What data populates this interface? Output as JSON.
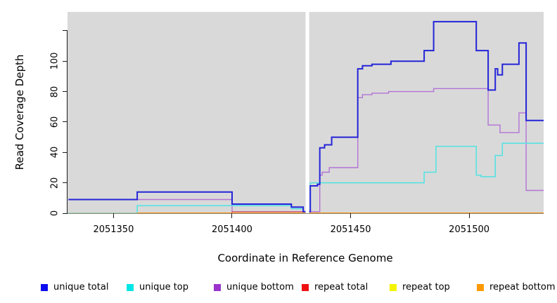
{
  "chart_data": {
    "type": "line",
    "subtype": "step-after",
    "title": "",
    "xlabel": "Coordinate in Reference Genome",
    "ylabel": "Read Coverage Depth",
    "xlim": [
      2051330.6,
      2051531.4
    ],
    "ylim": [
      0,
      132.4
    ],
    "panel_bg": "#d9d9d9",
    "grid": "off",
    "legend_position": "bottom",
    "xticks": [
      {
        "value": 2051350,
        "label": "2051350"
      },
      {
        "value": 2051400,
        "label": "2051400"
      },
      {
        "value": 2051450,
        "label": "2051450"
      },
      {
        "value": 2051500,
        "label": "2051500"
      }
    ],
    "yticks": [
      {
        "value": 0,
        "label": "0"
      },
      {
        "value": 20,
        "label": "20"
      },
      {
        "value": 40,
        "label": "40"
      },
      {
        "value": 60,
        "label": "60"
      },
      {
        "value": 80,
        "label": "80"
      },
      {
        "value": 100,
        "label": "100"
      },
      {
        "value": 120,
        "label": ""
      }
    ],
    "gap": {
      "x_start": 2051431.0,
      "x_end": 2051432.5,
      "color": "#ffffff"
    },
    "series": [
      {
        "key": "unique_bottom",
        "name": "unique bottom",
        "line_color": "#b273d6",
        "line_width": 1.4,
        "points": [
          [
            2051331,
            9
          ],
          [
            2051400,
            1
          ],
          [
            2051437,
            25
          ],
          [
            2051438,
            27
          ],
          [
            2051441,
            30
          ],
          [
            2051453,
            76
          ],
          [
            2051455,
            78
          ],
          [
            2051459,
            79
          ],
          [
            2051466,
            80
          ],
          [
            2051485,
            82
          ],
          [
            2051508,
            58
          ],
          [
            2051513,
            53
          ],
          [
            2051521,
            66
          ],
          [
            2051524,
            15
          ]
        ]
      },
      {
        "key": "repeat_total",
        "name": "repeat total",
        "line_color": "#cf5876",
        "line_width": 1.4,
        "points": [
          [
            2051331,
            0
          ],
          [
            2051400,
            1
          ],
          [
            2051432,
            0
          ]
        ]
      },
      {
        "key": "unique_top",
        "name": "unique top",
        "line_color": "#4fe3e3",
        "line_width": 1.5,
        "points": [
          [
            2051331,
            0
          ],
          [
            2051360,
            5
          ],
          [
            2051425,
            3
          ],
          [
            2051430,
            0
          ],
          [
            2051433,
            20
          ],
          [
            2051481,
            27
          ],
          [
            2051486,
            44
          ],
          [
            2051503,
            25
          ],
          [
            2051505,
            24
          ],
          [
            2051511,
            38
          ],
          [
            2051514,
            46
          ]
        ]
      },
      {
        "key": "repeat_top",
        "name": "repeat top",
        "line_color": "#9fd89f",
        "line_width": 1.5,
        "points": [
          [
            2051331,
            0
          ]
        ]
      },
      {
        "key": "repeat_bottom",
        "name": "repeat bottom",
        "line_color": "#ff9505",
        "line_width": 2,
        "points": [
          [
            2051360,
            0
          ]
        ]
      },
      {
        "key": "unique_total",
        "name": "unique total",
        "line_color": "#2424d9",
        "line_width": 2,
        "points": [
          [
            2051331,
            9
          ],
          [
            2051360,
            14
          ],
          [
            2051400,
            6
          ],
          [
            2051425,
            4
          ],
          [
            2051430,
            1
          ],
          [
            2051433,
            18
          ],
          [
            2051436,
            19
          ],
          [
            2051437,
            43
          ],
          [
            2051439,
            45
          ],
          [
            2051442,
            50
          ],
          [
            2051453,
            95
          ],
          [
            2051455,
            97
          ],
          [
            2051459,
            98
          ],
          [
            2051467,
            100
          ],
          [
            2051481,
            107
          ],
          [
            2051485,
            126
          ],
          [
            2051503,
            107
          ],
          [
            2051508,
            81
          ],
          [
            2051511,
            95
          ],
          [
            2051512,
            91
          ],
          [
            2051514,
            98
          ],
          [
            2051521,
            112
          ],
          [
            2051524,
            61
          ]
        ]
      }
    ],
    "legend": [
      {
        "label": "unique total",
        "color": "#0c0cee"
      },
      {
        "label": "unique top",
        "color": "#00e6e6"
      },
      {
        "label": "unique bottom",
        "color": "#9933cc"
      },
      {
        "label": "repeat total",
        "color": "#ee1111"
      },
      {
        "label": "repeat top",
        "color": "#f4f400"
      },
      {
        "label": "repeat bottom",
        "color": "#ff9900"
      }
    ]
  }
}
